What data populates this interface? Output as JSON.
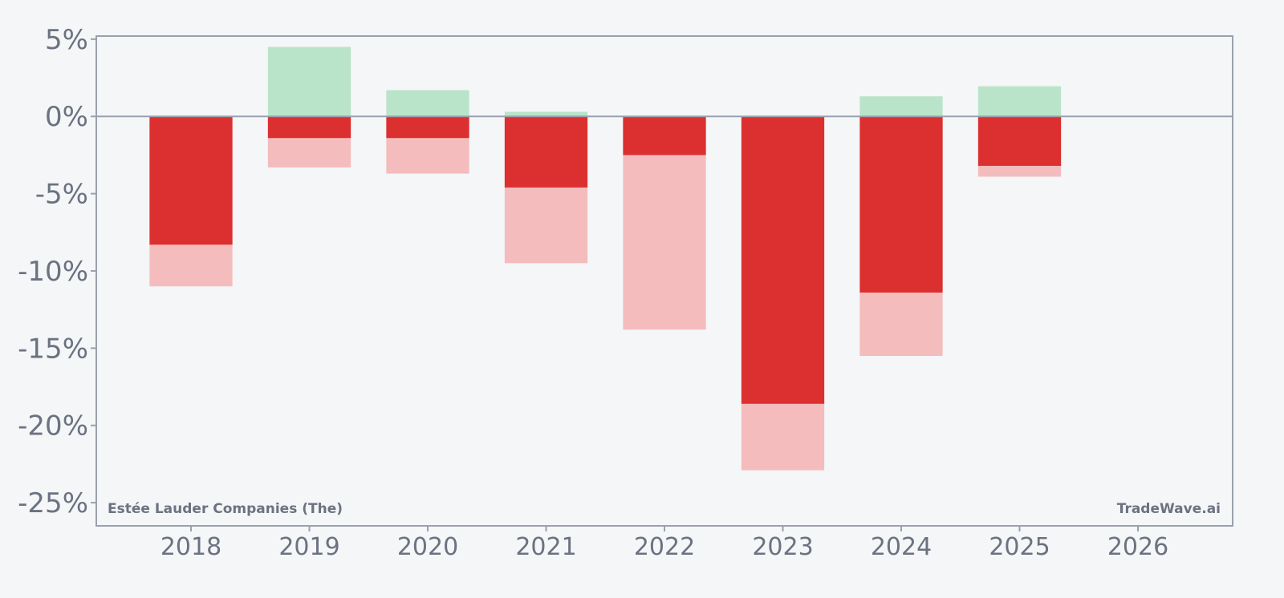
{
  "chart_data": {
    "type": "bar",
    "categories": [
      "2018",
      "2019",
      "2020",
      "2021",
      "2022",
      "2023",
      "2024",
      "2025",
      "2026"
    ],
    "series": [
      {
        "values": [
          -8.3,
          -1.4,
          -1.4,
          -4.6,
          -2.5,
          -18.6,
          -11.4,
          -3.2,
          null
        ]
      },
      {
        "values": [
          -11.0,
          -3.3,
          -3.7,
          -9.5,
          -13.8,
          -22.9,
          -15.5,
          -3.9,
          null
        ]
      },
      {
        "values": [
          0,
          4.5,
          1.7,
          0.3,
          0,
          0,
          1.3,
          1.95,
          null
        ]
      }
    ],
    "yticks": [
      "5%",
      "0%",
      "-5%",
      "-10%",
      "-15%",
      "-20%",
      "-25%"
    ],
    "ylim": [
      -26.5,
      5.2
    ],
    "grid": false,
    "colors": {
      "loss_dark": "#dc2f2f",
      "loss_light": "#f4bcbc",
      "gain": "#b9e4c9",
      "axis": "#9aa0ad",
      "text": "#6b7280",
      "background": "#f4f6f8"
    }
  },
  "watermark": {
    "left": "Estée Lauder Companies (The)",
    "right": "TradeWave.ai"
  }
}
